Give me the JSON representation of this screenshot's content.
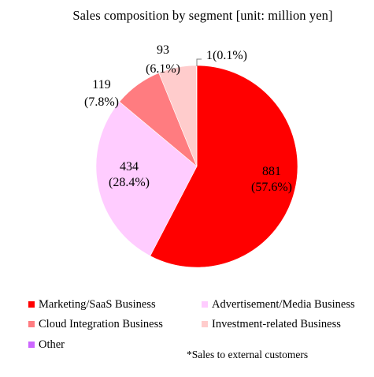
{
  "chart_data": {
    "type": "pie",
    "title": "Sales composition by segment [unit: million yen]",
    "unit": "million yen",
    "slices": [
      {
        "name": "Marketing/SaaS Business",
        "value": 881,
        "percent": "57.6%",
        "label_value": "881",
        "label_percent": "(57.6%)",
        "color": "#ff0000"
      },
      {
        "name": "Advertisement/Media Business",
        "value": 434,
        "percent": "28.4%",
        "label_value": "434",
        "label_percent": "(28.4%)",
        "color": "#ffccff"
      },
      {
        "name": "Cloud Integration Business",
        "value": 119,
        "percent": "7.8%",
        "label_value": "119",
        "label_percent": "(7.8%)",
        "color": "#ff7c80"
      },
      {
        "name": "Investment-related Business",
        "value": 93,
        "percent": "6.1%",
        "label_value": "93",
        "label_percent": "(6.1%)",
        "color": "#ffcccc"
      },
      {
        "name": "Other",
        "value": 1,
        "percent": "0.1%",
        "label_value": "1(0.1%)",
        "label_percent": "",
        "color": "#cc66ff"
      }
    ],
    "legend_placement": "bottom",
    "footnote": "*Sales to external customers"
  }
}
